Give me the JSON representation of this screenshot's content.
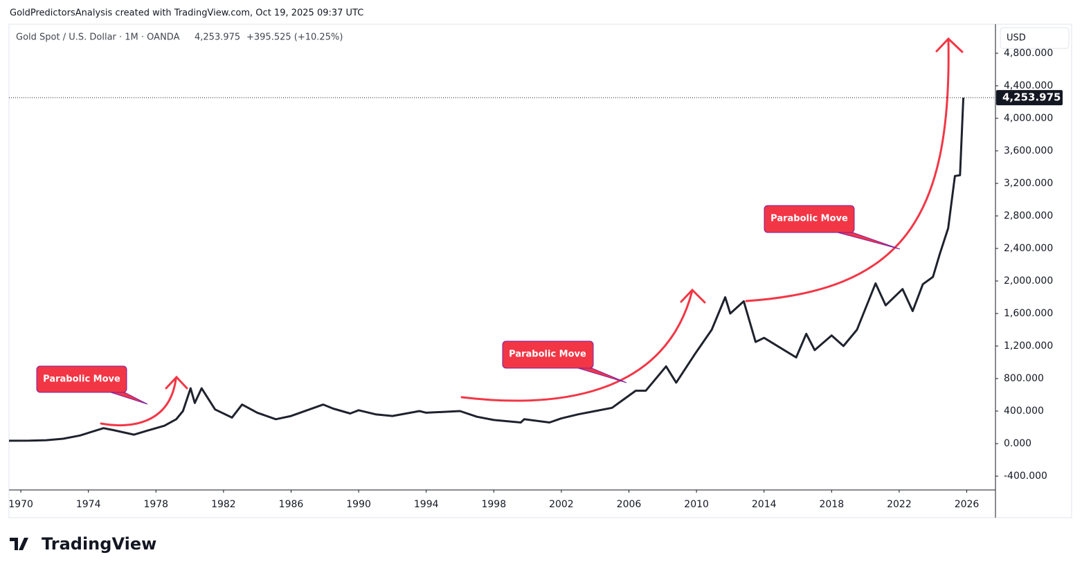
{
  "header": {
    "credit": "GoldPredictorsAnalysis created with TradingView.com, Oct 19, 2025 09:37 UTC",
    "logo": "TradingView"
  },
  "chart_data": {
    "type": "line",
    "title": "Gold Spot / U.S. Dollar · 1M · OANDA",
    "legend_price": "4,253.975",
    "legend_change": "+395.525 (+10.25%)",
    "currency": "USD",
    "annotations": [
      "Parabolic Move",
      "Parabolic Move",
      "Parabolic Move"
    ],
    "color": "#1e222d",
    "x": [
      1969.3,
      1970.5,
      1971.5,
      1972.5,
      1973.5,
      1974.9,
      1975.5,
      1976.7,
      1977.5,
      1978.5,
      1979.2,
      1979.6,
      1980.05,
      1980.3,
      1980.7,
      1981.5,
      1982.5,
      1983.1,
      1984.0,
      1985.1,
      1986.0,
      1987.9,
      1988.5,
      1989.5,
      1990.0,
      1991.0,
      1992.0,
      1993.6,
      1994.0,
      1996.0,
      1997.0,
      1998.0,
      1999.6,
      1999.8,
      2001.3,
      2002.0,
      2003.0,
      2004.0,
      2005.0,
      2006.4,
      2007.0,
      2008.2,
      2008.8,
      2009.9,
      2010.9,
      2011.7,
      2012.0,
      2012.8,
      2013.5,
      2014.0,
      2015.9,
      2016.5,
      2017.0,
      2018.0,
      2018.7,
      2019.5,
      2020.6,
      2021.2,
      2022.2,
      2022.8,
      2023.4,
      2024.0,
      2024.4,
      2024.9,
      2025.3,
      2025.6,
      2025.8
    ],
    "values": [
      35,
      36,
      42,
      60,
      100,
      190,
      165,
      110,
      160,
      220,
      300,
      400,
      680,
      500,
      680,
      420,
      320,
      480,
      380,
      300,
      340,
      480,
      430,
      370,
      410,
      360,
      340,
      400,
      380,
      400,
      330,
      290,
      260,
      300,
      260,
      310,
      360,
      400,
      440,
      650,
      650,
      950,
      750,
      1100,
      1400,
      1800,
      1600,
      1750,
      1250,
      1300,
      1060,
      1350,
      1150,
      1330,
      1200,
      1400,
      1970,
      1700,
      1900,
      1630,
      1960,
      2050,
      2330,
      2650,
      3290,
      3300,
      4253.975
    ],
    "last_price": {
      "value": 4253.975,
      "label": "4,253.975"
    },
    "xlim": [
      1969.3,
      2027.7
    ],
    "xticks": [
      1970,
      1974,
      1978,
      1982,
      1986,
      1990,
      1994,
      1998,
      2002,
      2006,
      2010,
      2014,
      2018,
      2022,
      2026
    ],
    "ylim": [
      -570,
      5157
    ],
    "yticks": [
      {
        "value": -400,
        "label": "-400.000"
      },
      {
        "value": 0,
        "label": "0.000"
      },
      {
        "value": 400,
        "label": "400.000"
      },
      {
        "value": 800,
        "label": "800.000"
      },
      {
        "value": 1200,
        "label": "1,200.000"
      },
      {
        "value": 1600,
        "label": "1,600.000"
      },
      {
        "value": 2000,
        "label": "2,000.000"
      },
      {
        "value": 2400,
        "label": "2,400.000"
      },
      {
        "value": 2800,
        "label": "2,800.000"
      },
      {
        "value": 3200,
        "label": "3,200.000"
      },
      {
        "value": 3600,
        "label": "3,600.000"
      },
      {
        "value": 4000,
        "label": "4,000.000"
      },
      {
        "value": 4400,
        "label": "4,400.000"
      },
      {
        "value": 4800,
        "label": "4,800.000"
      }
    ],
    "grid": false
  }
}
